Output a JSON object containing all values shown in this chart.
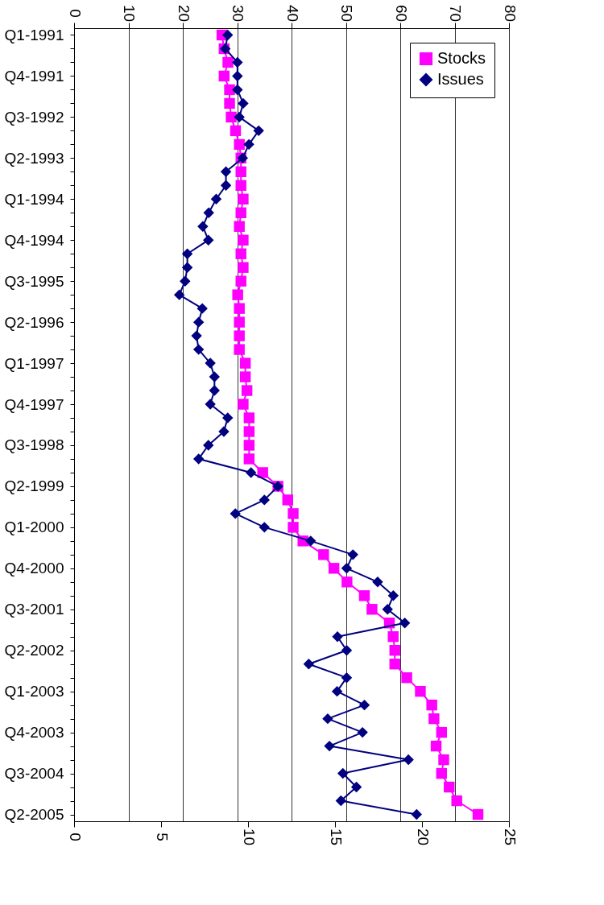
{
  "chart_data": {
    "type": "line",
    "orientation": "horizontal",
    "categories": [
      "Q1-1991",
      null,
      null,
      "Q4-1991",
      null,
      null,
      "Q3-1992",
      null,
      null,
      "Q2-1993",
      null,
      null,
      "Q1-1994",
      null,
      null,
      "Q4-1994",
      null,
      null,
      "Q3-1995",
      null,
      null,
      "Q2-1996",
      null,
      null,
      "Q1-1997",
      null,
      null,
      "Q4-1997",
      null,
      null,
      "Q3-1998",
      null,
      null,
      "Q2-1999",
      null,
      null,
      "Q1-2000",
      null,
      null,
      "Q4-2000",
      null,
      null,
      "Q3-2001",
      null,
      null,
      "Q2-2002",
      null,
      null,
      "Q1-2003",
      null,
      null,
      "Q4-2003",
      null,
      null,
      "Q3-2004",
      null,
      null,
      "Q2-2005"
    ],
    "xlim": [
      0,
      80
    ],
    "xticks": [
      0,
      10,
      20,
      30,
      40,
      50,
      60,
      70,
      80
    ],
    "x2lim": [
      0,
      25
    ],
    "x2ticks": [
      0,
      5,
      10,
      15,
      20,
      25
    ],
    "grid": "x",
    "legend": "top right",
    "series": [
      {
        "name": "Stocks",
        "color": "#ff00ff",
        "marker": "square",
        "values": [
          27.2,
          27.6,
          28.3,
          27.6,
          28.6,
          28.6,
          28.9,
          29.7,
          30.4,
          30.7,
          30.7,
          30.7,
          31.1,
          30.7,
          30.4,
          31.1,
          30.7,
          31.1,
          30.7,
          30.1,
          30.4,
          30.4,
          30.4,
          30.4,
          31.5,
          31.5,
          31.8,
          31.1,
          32.2,
          32.2,
          32.2,
          32.2,
          34.7,
          37.5,
          39.3,
          40.3,
          40.3,
          42.1,
          45.9,
          47.8,
          50.2,
          53.4,
          54.8,
          58.0,
          58.7,
          59.0,
          59.0,
          61.2,
          63.7,
          65.8,
          66.2,
          67.6,
          66.6,
          68.0,
          67.6,
          69.0,
          70.4,
          74.3
        ]
      },
      {
        "name": "Issues",
        "color": "#000080",
        "marker": "diamond",
        "axis": "x2",
        "values": [
          8.83,
          8.69,
          9.39,
          9.39,
          9.39,
          9.72,
          9.5,
          10.61,
          10.05,
          9.69,
          8.73,
          8.73,
          8.17,
          7.74,
          7.4,
          7.72,
          6.51,
          6.51,
          6.38,
          6.05,
          7.37,
          7.16,
          7.04,
          7.16,
          7.83,
          8.07,
          8.07,
          7.83,
          8.83,
          8.61,
          7.72,
          7.16,
          10.17,
          11.72,
          10.94,
          9.27,
          10.94,
          13.6,
          16.03,
          15.67,
          17.45,
          18.35,
          18.02,
          19.01,
          15.14,
          15.67,
          13.49,
          15.67,
          15.12,
          16.69,
          14.58,
          16.58,
          14.68,
          19.22,
          15.45,
          16.23,
          15.34,
          19.69
        ]
      }
    ]
  }
}
